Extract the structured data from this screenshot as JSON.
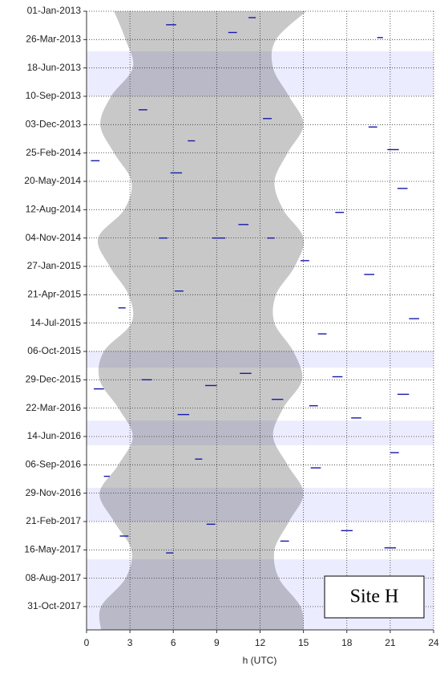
{
  "chart_data": {
    "type": "detection-plot",
    "xlabel": "h (UTC)",
    "xlim": [
      0,
      24
    ],
    "xticks": [
      0,
      3,
      6,
      9,
      12,
      15,
      18,
      21,
      24
    ],
    "ylim": [
      "2013-01-01",
      "2018-01-08"
    ],
    "yticks": [
      {
        "value": "2013-01-01",
        "label": "01-Jan-2013"
      },
      {
        "value": "2013-03-26",
        "label": "26-Mar-2013"
      },
      {
        "value": "2013-06-18",
        "label": "18-Jun-2013"
      },
      {
        "value": "2013-09-10",
        "label": "10-Sep-2013"
      },
      {
        "value": "2013-12-03",
        "label": "03-Dec-2013"
      },
      {
        "value": "2014-02-25",
        "label": "25-Feb-2014"
      },
      {
        "value": "2014-05-20",
        "label": "20-May-2014"
      },
      {
        "value": "2014-08-12",
        "label": "12-Aug-2014"
      },
      {
        "value": "2014-11-04",
        "label": "04-Nov-2014"
      },
      {
        "value": "2015-01-27",
        "label": "27-Jan-2015"
      },
      {
        "value": "2015-04-21",
        "label": "21-Apr-2015"
      },
      {
        "value": "2015-07-14",
        "label": "14-Jul-2015"
      },
      {
        "value": "2015-10-06",
        "label": "06-Oct-2015"
      },
      {
        "value": "2015-12-29",
        "label": "29-Dec-2015"
      },
      {
        "value": "2016-03-22",
        "label": "22-Mar-2016"
      },
      {
        "value": "2016-06-14",
        "label": "14-Jun-2016"
      },
      {
        "value": "2016-09-06",
        "label": "06-Sep-2016"
      },
      {
        "value": "2016-11-29",
        "label": "29-Nov-2016"
      },
      {
        "value": "2017-02-21",
        "label": "21-Feb-2017"
      },
      {
        "value": "2017-05-16",
        "label": "16-May-2017"
      },
      {
        "value": "2017-08-08",
        "label": "08-Aug-2017"
      },
      {
        "value": "2017-10-31",
        "label": "31-Oct-2017"
      }
    ],
    "grid": true,
    "site_label": "Site H",
    "daylight": {
      "color": "#c8c8c8",
      "dates": [
        "2013-01-01",
        "2013-03-26",
        "2013-06-18",
        "2013-09-10",
        "2013-12-03",
        "2014-02-25",
        "2014-05-20",
        "2014-08-12",
        "2014-11-04",
        "2015-01-27",
        "2015-04-21",
        "2015-07-14",
        "2015-10-06",
        "2015-12-29",
        "2016-03-22",
        "2016-06-14",
        "2016-09-06",
        "2016-11-29",
        "2017-02-21",
        "2017-05-16",
        "2017-08-08",
        "2017-10-31",
        "2018-01-08"
      ],
      "sunrise": [
        1.9,
        2.7,
        3.2,
        1.7,
        0.95,
        1.9,
        3.1,
        2.6,
        0.8,
        1.6,
        2.9,
        3.1,
        1.2,
        0.9,
        2.2,
        3.2,
        2.2,
        0.9,
        1.9,
        3.1,
        2.7,
        1.0,
        1.0
      ],
      "sunset": [
        15.2,
        13.1,
        12.9,
        14.0,
        15.0,
        13.9,
        13.0,
        13.6,
        15.0,
        14.4,
        13.1,
        13.0,
        14.3,
        14.9,
        13.6,
        12.9,
        13.9,
        15.0,
        14.0,
        13.0,
        13.3,
        14.8,
        15.0
      ]
    },
    "no_data": {
      "color": "#dcdcff",
      "periods": [
        [
          "2013-04-30",
          "2013-09-10"
        ],
        [
          "2015-10-04",
          "2015-11-23"
        ],
        [
          "2016-04-28",
          "2016-07-10"
        ],
        [
          "2016-11-13",
          "2017-02-21"
        ],
        [
          "2017-06-13",
          "2018-01-08"
        ]
      ]
    },
    "detection_color": "#1a1aa8",
    "detections": [
      {
        "date": "2013-01-20",
        "start": 11.2,
        "end": 11.7
      },
      {
        "date": "2013-02-10",
        "start": 5.5,
        "end": 6.2
      },
      {
        "date": "2013-03-05",
        "start": 9.8,
        "end": 10.4
      },
      {
        "date": "2013-03-20",
        "start": 20.1,
        "end": 20.5
      },
      {
        "date": "2013-10-20",
        "start": 3.6,
        "end": 4.2
      },
      {
        "date": "2013-11-15",
        "start": 12.2,
        "end": 12.8
      },
      {
        "date": "2013-12-10",
        "start": 19.5,
        "end": 20.1
      },
      {
        "date": "2014-01-20",
        "start": 7.0,
        "end": 7.5
      },
      {
        "date": "2014-02-15",
        "start": 20.8,
        "end": 21.6
      },
      {
        "date": "2014-03-20",
        "start": 0.3,
        "end": 0.9
      },
      {
        "date": "2014-04-25",
        "start": 5.8,
        "end": 6.6
      },
      {
        "date": "2014-06-10",
        "start": 21.5,
        "end": 22.2
      },
      {
        "date": "2014-08-20",
        "start": 17.2,
        "end": 17.8
      },
      {
        "date": "2014-09-25",
        "start": 10.5,
        "end": 11.2
      },
      {
        "date": "2014-11-04",
        "start": 5.0,
        "end": 5.6
      },
      {
        "date": "2014-11-04",
        "start": 8.7,
        "end": 9.6
      },
      {
        "date": "2014-11-04",
        "start": 12.5,
        "end": 13.0
      },
      {
        "date": "2015-01-10",
        "start": 14.8,
        "end": 15.4
      },
      {
        "date": "2015-02-20",
        "start": 19.2,
        "end": 19.9
      },
      {
        "date": "2015-04-10",
        "start": 6.1,
        "end": 6.7
      },
      {
        "date": "2015-05-30",
        "start": 2.2,
        "end": 2.7
      },
      {
        "date": "2015-07-01",
        "start": 22.3,
        "end": 23.0
      },
      {
        "date": "2015-08-15",
        "start": 16.0,
        "end": 16.6
      },
      {
        "date": "2015-12-10",
        "start": 10.6,
        "end": 11.4
      },
      {
        "date": "2015-12-20",
        "start": 17.0,
        "end": 17.7
      },
      {
        "date": "2015-12-29",
        "start": 3.8,
        "end": 4.5
      },
      {
        "date": "2016-01-15",
        "start": 8.2,
        "end": 9.0
      },
      {
        "date": "2016-01-25",
        "start": 0.5,
        "end": 1.2
      },
      {
        "date": "2016-02-10",
        "start": 21.5,
        "end": 22.3
      },
      {
        "date": "2016-02-25",
        "start": 12.8,
        "end": 13.6
      },
      {
        "date": "2016-03-15",
        "start": 15.4,
        "end": 16.0
      },
      {
        "date": "2016-04-10",
        "start": 6.3,
        "end": 7.1
      },
      {
        "date": "2016-04-20",
        "start": 18.3,
        "end": 19.0
      },
      {
        "date": "2016-08-01",
        "start": 21.0,
        "end": 21.6
      },
      {
        "date": "2016-08-20",
        "start": 7.5,
        "end": 8.0
      },
      {
        "date": "2016-09-15",
        "start": 15.5,
        "end": 16.2
      },
      {
        "date": "2016-10-10",
        "start": 1.2,
        "end": 1.6
      },
      {
        "date": "2017-03-01",
        "start": 8.3,
        "end": 8.9
      },
      {
        "date": "2017-03-20",
        "start": 17.6,
        "end": 18.4
      },
      {
        "date": "2017-04-05",
        "start": 2.3,
        "end": 2.9
      },
      {
        "date": "2017-04-20",
        "start": 13.4,
        "end": 14.0
      },
      {
        "date": "2017-05-10",
        "start": 20.6,
        "end": 21.4
      },
      {
        "date": "2017-05-25",
        "start": 5.5,
        "end": 6.0
      }
    ]
  }
}
